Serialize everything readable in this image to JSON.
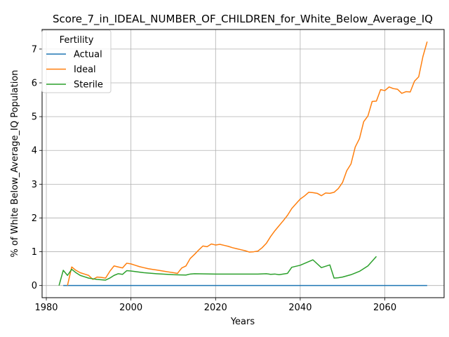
{
  "chart_data": {
    "type": "line",
    "title": "Score_7_in_IDEAL_NUMBER_OF_CHILDREN_for_White_Below_Average_IQ",
    "xlabel": "Years",
    "ylabel": "% of White Below_Average_IQ Population",
    "xlim": [
      1979,
      2074
    ],
    "ylim": [
      -0.36,
      7.58
    ],
    "xticks": [
      1980,
      2000,
      2020,
      2040,
      2060
    ],
    "yticks": [
      0,
      1,
      2,
      3,
      4,
      5,
      6,
      7
    ],
    "grid": true,
    "legend": {
      "title": "Fertility",
      "position": "top-left"
    },
    "series": [
      {
        "name": "Actual",
        "color": "#1f77b4",
        "x": [
          1984,
          1990,
          2000,
          2010,
          2020,
          2030,
          2040,
          2050,
          2060,
          2070
        ],
        "y": [
          0,
          0,
          0,
          0,
          0,
          0,
          0,
          0,
          0,
          0
        ]
      },
      {
        "name": "Ideal",
        "color": "#ff7f0e",
        "x": [
          1985,
          1986,
          1987,
          1988,
          1989,
          1990,
          1991,
          1992,
          1993,
          1994,
          1995,
          1996,
          1997,
          1998,
          1999,
          2000,
          2001,
          2002,
          2003,
          2004,
          2005,
          2006,
          2007,
          2008,
          2009,
          2010,
          2011,
          2012,
          2013,
          2014,
          2015,
          2016,
          2017,
          2018,
          2019,
          2020,
          2021,
          2022,
          2023,
          2024,
          2025,
          2026,
          2027,
          2028,
          2029,
          2030,
          2031,
          2032,
          2033,
          2034,
          2035,
          2036,
          2037,
          2038,
          2039,
          2040,
          2041,
          2042,
          2043,
          2044,
          2045,
          2046,
          2047,
          2048,
          2049,
          2050,
          2051,
          2052,
          2053,
          2054,
          2055,
          2056,
          2057,
          2058,
          2059,
          2060,
          2061,
          2062,
          2063,
          2064,
          2065,
          2066,
          2067,
          2068,
          2069,
          2070
        ],
        "y": [
          0.0,
          0.55,
          0.45,
          0.38,
          0.34,
          0.3,
          0.18,
          0.25,
          0.24,
          0.22,
          0.42,
          0.58,
          0.55,
          0.52,
          0.66,
          0.64,
          0.6,
          0.56,
          0.53,
          0.5,
          0.48,
          0.46,
          0.44,
          0.42,
          0.4,
          0.38,
          0.36,
          0.52,
          0.58,
          0.8,
          0.92,
          1.05,
          1.17,
          1.15,
          1.23,
          1.2,
          1.22,
          1.19,
          1.16,
          1.12,
          1.09,
          1.06,
          1.03,
          0.99,
          1.0,
          1.02,
          1.12,
          1.25,
          1.45,
          1.62,
          1.77,
          1.92,
          2.08,
          2.28,
          2.42,
          2.56,
          2.65,
          2.76,
          2.75,
          2.73,
          2.66,
          2.74,
          2.73,
          2.76,
          2.87,
          3.05,
          3.4,
          3.6,
          4.1,
          4.35,
          4.85,
          5.02,
          5.45,
          5.46,
          5.8,
          5.77,
          5.88,
          5.83,
          5.81,
          5.69,
          5.74,
          5.73,
          6.05,
          6.18,
          6.78,
          7.22
        ]
      },
      {
        "name": "Sterile",
        "color": "#2ca02c",
        "x": [
          1983,
          1984,
          1985,
          1986,
          1987,
          1988,
          1989,
          1990,
          1991,
          1992,
          1993,
          1994,
          1995,
          1996,
          1997,
          1998,
          1999,
          2000,
          2003,
          2006,
          2010,
          2013,
          2014,
          2015,
          2020,
          2025,
          2030,
          2032,
          2033,
          2034,
          2035,
          2037,
          2038,
          2040,
          2043,
          2045,
          2047,
          2048,
          2049,
          2050,
          2052,
          2054,
          2056,
          2058
        ],
        "y": [
          0.0,
          0.45,
          0.3,
          0.48,
          0.38,
          0.3,
          0.26,
          0.22,
          0.2,
          0.18,
          0.17,
          0.16,
          0.22,
          0.3,
          0.35,
          0.33,
          0.44,
          0.43,
          0.38,
          0.35,
          0.32,
          0.31,
          0.34,
          0.35,
          0.34,
          0.34,
          0.34,
          0.35,
          0.33,
          0.34,
          0.32,
          0.36,
          0.54,
          0.6,
          0.76,
          0.53,
          0.61,
          0.22,
          0.23,
          0.25,
          0.32,
          0.42,
          0.58,
          0.86
        ]
      }
    ]
  }
}
